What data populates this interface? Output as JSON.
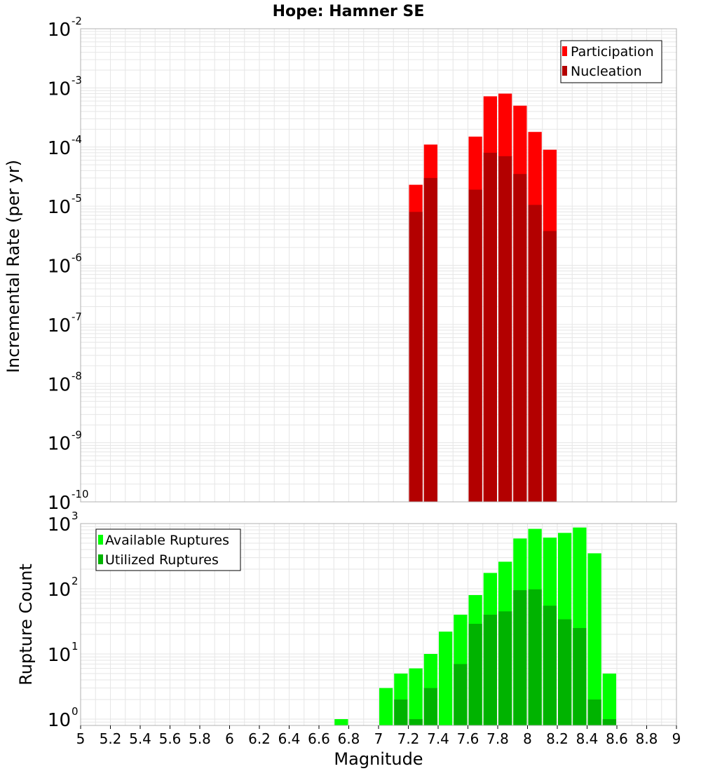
{
  "title": "Hope: Hamner SE",
  "xlabel": "Magnitude",
  "x_ticks": [
    "5",
    "5.2",
    "5.4",
    "5.6",
    "5.8",
    "6",
    "6.2",
    "6.4",
    "6.6",
    "6.8",
    "7",
    "7.2",
    "7.4",
    "7.6",
    "7.8",
    "8",
    "8.2",
    "8.4",
    "8.6",
    "8.8",
    "9"
  ],
  "colors": {
    "participation": "#ff0000",
    "nucleation": "#b30000",
    "available": "#00ff00",
    "utilized": "#00b300",
    "grid": "#e6e6e6",
    "frame": "#b0b0b0"
  },
  "chart_data": [
    {
      "type": "bar",
      "panel": "top",
      "ylabel": "Incremental Rate (per yr)",
      "yscale": "log",
      "xlim": [
        5,
        9
      ],
      "ylim": [
        1e-10,
        0.01
      ],
      "y_tick_exponents": [
        "-10",
        "-9",
        "-8",
        "-7",
        "-6",
        "-5",
        "-4",
        "-3",
        "-2"
      ],
      "bar_width": 0.1,
      "legend": {
        "position": "top-right",
        "entries": [
          "Participation",
          "Nucleation"
        ]
      },
      "x": [
        7.25,
        7.35,
        7.65,
        7.75,
        7.85,
        7.95,
        8.05,
        8.15
      ],
      "series": [
        {
          "name": "Participation",
          "color": "#ff0000",
          "values": [
            2.3e-05,
            0.00011,
            0.00015,
            0.00072,
            0.0008,
            0.0005,
            0.00018,
            9e-05
          ]
        },
        {
          "name": "Nucleation",
          "color": "#b30000",
          "values": [
            8e-06,
            3e-05,
            1.9e-05,
            8e-05,
            7e-05,
            3.5e-05,
            1.05e-05,
            3.8e-06
          ]
        }
      ]
    },
    {
      "type": "bar",
      "panel": "bottom",
      "ylabel": "Rupture Count",
      "yscale": "log",
      "xlim": [
        5,
        9
      ],
      "ylim": [
        0.8,
        1000
      ],
      "y_tick_exponents": [
        "0",
        "1",
        "2",
        "3"
      ],
      "bar_width": 0.1,
      "legend": {
        "position": "top-left",
        "entries": [
          "Available Ruptures",
          "Utilized Ruptures"
        ]
      },
      "x": [
        6.75,
        7.05,
        7.15,
        7.25,
        7.35,
        7.45,
        7.55,
        7.65,
        7.75,
        7.85,
        7.95,
        8.05,
        8.15,
        8.25,
        8.35,
        8.45,
        8.55
      ],
      "series": [
        {
          "name": "Available Ruptures",
          "color": "#00ff00",
          "values": [
            1,
            3,
            5,
            6,
            10,
            22,
            40,
            80,
            175,
            260,
            590,
            830,
            610,
            720,
            870,
            350,
            5
          ]
        },
        {
          "name": "Utilized Ruptures",
          "color": "#00b300",
          "values": [
            0,
            0,
            2,
            1,
            3,
            0,
            7,
            29,
            40,
            45,
            95,
            98,
            55,
            34,
            25,
            2,
            1
          ]
        }
      ]
    }
  ]
}
